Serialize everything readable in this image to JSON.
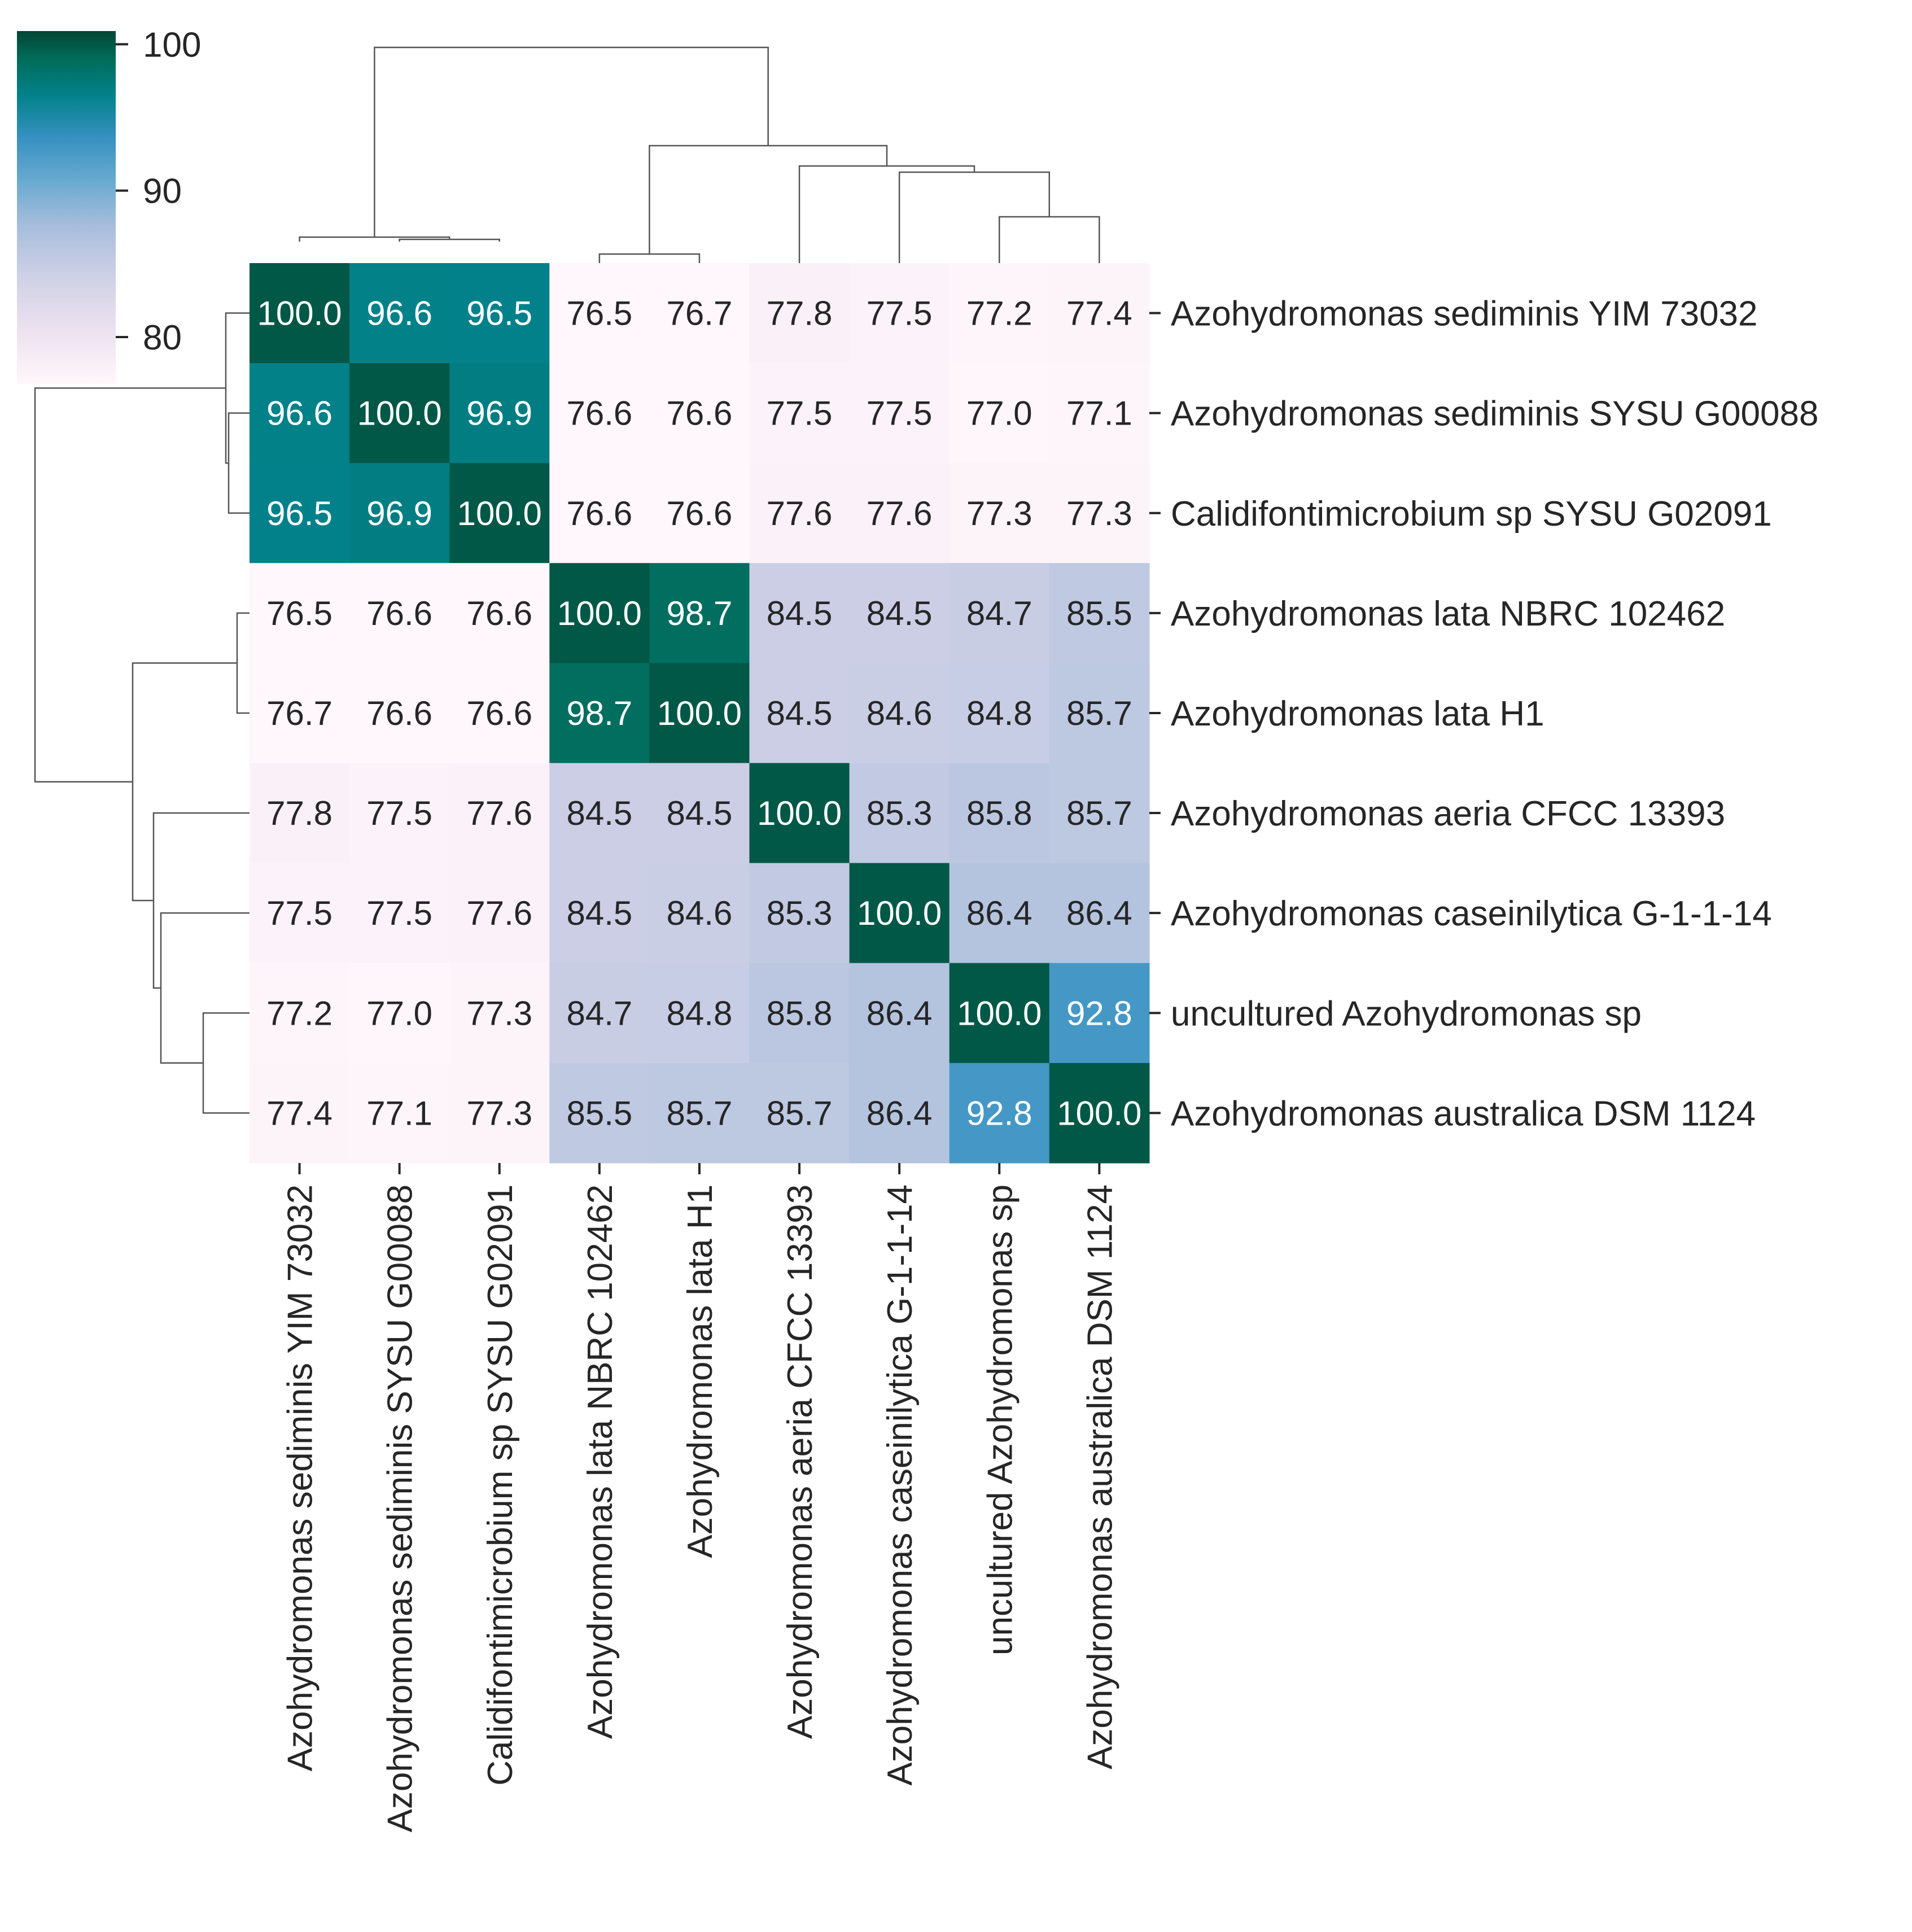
{
  "chart_data": {
    "type": "heatmap",
    "title": "",
    "labels": [
      "Azohydromonas sediminis YIM 73032",
      "Azohydromonas sediminis SYSU G00088",
      "Calidifontimicrobium sp SYSU G02091",
      "Azohydromonas lata NBRC 102462",
      "Azohydromonas lata H1",
      "Azohydromonas aeria CFCC 13393",
      "Azohydromonas caseinilytica G-1-1-14",
      "uncultured Azohydromonas sp",
      "Azohydromonas australica DSM 1124"
    ],
    "matrix": [
      [
        100.0,
        96.6,
        96.5,
        76.5,
        76.7,
        77.8,
        77.5,
        77.2,
        77.4
      ],
      [
        96.6,
        100.0,
        96.9,
        76.6,
        76.6,
        77.5,
        77.5,
        77.0,
        77.1
      ],
      [
        96.5,
        96.9,
        100.0,
        76.6,
        76.6,
        77.6,
        77.6,
        77.3,
        77.3
      ],
      [
        76.5,
        76.6,
        76.6,
        100.0,
        98.7,
        84.5,
        84.5,
        84.7,
        85.5
      ],
      [
        76.7,
        76.6,
        76.6,
        98.7,
        100.0,
        84.5,
        84.6,
        84.8,
        85.7
      ],
      [
        77.8,
        77.5,
        77.6,
        84.5,
        84.5,
        100.0,
        85.3,
        85.8,
        85.7
      ],
      [
        77.5,
        77.5,
        77.6,
        84.5,
        84.6,
        85.3,
        100.0,
        86.4,
        86.4
      ],
      [
        77.2,
        77.0,
        77.3,
        84.7,
        84.8,
        85.8,
        86.4,
        100.0,
        92.8
      ],
      [
        77.4,
        77.1,
        77.3,
        85.5,
        85.7,
        85.7,
        86.4,
        92.8,
        100.0
      ]
    ],
    "colorbar": {
      "min": 76.5,
      "max": 100.0,
      "ticks": [
        80,
        90,
        100
      ],
      "colormap": "PuBuGn"
    },
    "dendrogram": "hierarchical clustering on rows and columns"
  }
}
